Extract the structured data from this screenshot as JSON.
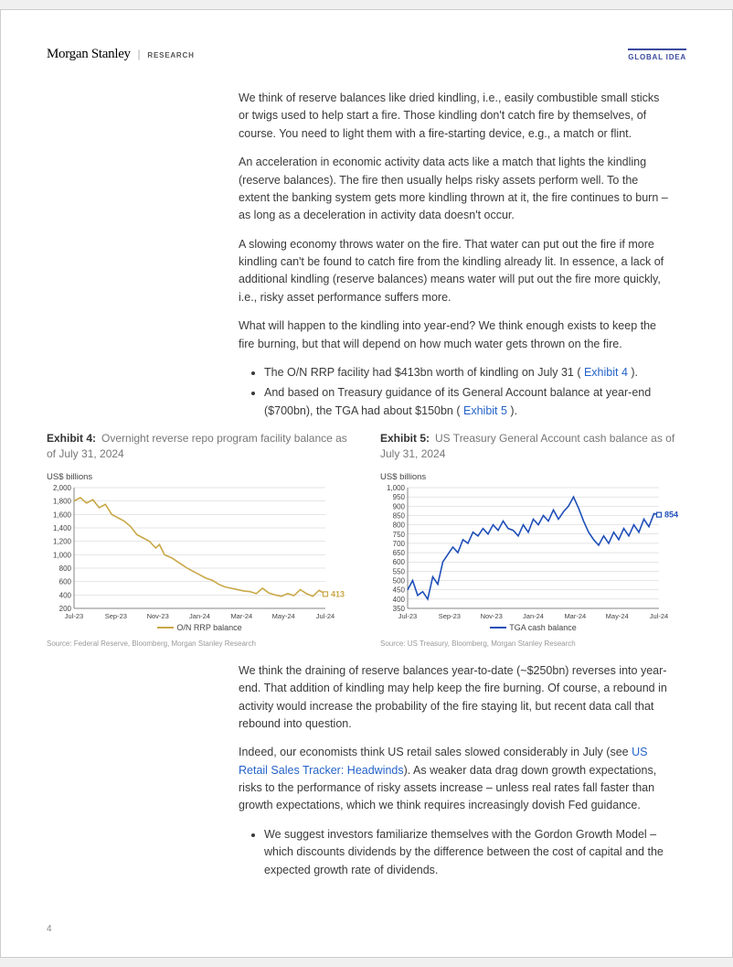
{
  "header": {
    "brand": "Morgan Stanley",
    "sub": "RESEARCH",
    "badge": "GLOBAL IDEA"
  },
  "page_number": "4",
  "paragraphs": {
    "p1": "We think of reserve balances like dried kindling, i.e., easily combustible small sticks or twigs used to help start a fire. Those kindling don't catch fire by themselves, of course. You need to light them with a fire-starting device, e.g., a match or flint.",
    "p2": "An acceleration in economic activity data acts like a match that lights the kindling (reserve balances). The fire then usually helps risky assets perform well. To the extent the banking system gets more kindling thrown at it, the fire continues to burn – as long as a deceleration in activity data doesn't occur.",
    "p3": "A slowing economy throws water on the fire. That water can put out the fire if more kindling can't be found to catch fire from the kindling already lit. In essence, a lack of additional kindling (reserve balances) means water will put out the fire more quickly, i.e., risky asset performance suffers more.",
    "p4": "What will happen to the kindling into year-end? We think enough exists to keep the fire burning, but that will depend on how much water gets thrown on the fire.",
    "li1a": "The O/N RRP facility had $413bn worth of kindling on July 31 ( ",
    "li1_link": "Exhibit 4",
    "li1b": " ).",
    "li2a": "And based on Treasury guidance of its General Account balance at year-end ($700bn), the TGA had about $150bn ( ",
    "li2_link": "Exhibit 5",
    "li2b": " ).",
    "p5": "We think the draining of reserve balances year-to-date (~$250bn) reverses into year-end. That addition of kindling may help keep the fire burning. Of course, a rebound in activity would increase the probability of the fire staying lit, but recent data call that rebound into question.",
    "p6a": "Indeed, our economists think US retail sales slowed considerably in July (see ",
    "p6_link": "US Retail Sales Tracker: Headwinds",
    "p6b": "). As weaker data drag down growth expectations, risks to the performance of risky assets increase – unless real rates fall faster than growth expectations, which we think requires increasingly dovish Fed guidance.",
    "li3": "We suggest investors familiarize themselves with the Gordon Growth Model – which discounts dividends by the difference between the cost of capital and the expected growth rate of dividends."
  },
  "exhibit4": {
    "label": "Exhibit 4:",
    "title": "Overnight reverse repo program facility balance as of July 31, 2024",
    "y_axis_title": "US$ billions",
    "source": "Source: Federal Reserve, Bloomberg, Morgan Stanley Research",
    "legend": "O/N RRP balance",
    "end_label": "413",
    "line_color": "#c9a847",
    "grid_color": "#cccccc",
    "axis_color": "#666666",
    "ylim": [
      200,
      2000
    ],
    "ytick_step": 200,
    "yticks": [
      "200",
      "400",
      "600",
      "800",
      "1,000",
      "1,200",
      "1,400",
      "1,600",
      "1,800",
      "2,000"
    ],
    "xticks": [
      "Jul-23",
      "Sep-23",
      "Nov-23",
      "Jan-24",
      "Mar-24",
      "May-24",
      "Jul-24"
    ],
    "series": [
      [
        0,
        1800
      ],
      [
        5,
        1850
      ],
      [
        10,
        1770
      ],
      [
        15,
        1820
      ],
      [
        20,
        1700
      ],
      [
        25,
        1750
      ],
      [
        30,
        1600
      ],
      [
        35,
        1550
      ],
      [
        40,
        1500
      ],
      [
        45,
        1420
      ],
      [
        50,
        1300
      ],
      [
        55,
        1250
      ],
      [
        60,
        1200
      ],
      [
        65,
        1100
      ],
      [
        68,
        1150
      ],
      [
        72,
        1000
      ],
      [
        78,
        950
      ],
      [
        82,
        900
      ],
      [
        86,
        850
      ],
      [
        90,
        800
      ],
      [
        95,
        750
      ],
      [
        100,
        700
      ],
      [
        105,
        650
      ],
      [
        110,
        620
      ],
      [
        115,
        560
      ],
      [
        120,
        520
      ],
      [
        125,
        500
      ],
      [
        130,
        480
      ],
      [
        135,
        460
      ],
      [
        140,
        450
      ],
      [
        145,
        420
      ],
      [
        150,
        500
      ],
      [
        155,
        430
      ],
      [
        160,
        400
      ],
      [
        165,
        380
      ],
      [
        170,
        420
      ],
      [
        175,
        390
      ],
      [
        180,
        480
      ],
      [
        185,
        420
      ],
      [
        190,
        380
      ],
      [
        195,
        470
      ],
      [
        200,
        413
      ]
    ]
  },
  "exhibit5": {
    "label": "Exhibit 5:",
    "title": "US Treasury General Account cash balance as of July 31, 2024",
    "y_axis_title": "US$ billions",
    "source": "Source: US Treasury, Bloomberg, Morgan Stanley Research",
    "legend": "TGA cash balance",
    "end_label": "854",
    "line_color": "#1f4fb8",
    "grid_color": "#cccccc",
    "axis_color": "#666666",
    "ylim": [
      350,
      1000
    ],
    "ytick_step": 50,
    "yticks": [
      "350",
      "400",
      "450",
      "500",
      "550",
      "600",
      "650",
      "700",
      "750",
      "800",
      "850",
      "900",
      "950",
      "1,000"
    ],
    "xticks": [
      "Jul-23",
      "Sep-23",
      "Nov-23",
      "Jan-24",
      "Mar-24",
      "May-24",
      "Jul-24"
    ],
    "series": [
      [
        0,
        450
      ],
      [
        4,
        500
      ],
      [
        8,
        420
      ],
      [
        12,
        440
      ],
      [
        16,
        400
      ],
      [
        20,
        520
      ],
      [
        24,
        480
      ],
      [
        28,
        600
      ],
      [
        32,
        640
      ],
      [
        36,
        680
      ],
      [
        40,
        650
      ],
      [
        44,
        720
      ],
      [
        48,
        700
      ],
      [
        52,
        760
      ],
      [
        56,
        740
      ],
      [
        60,
        780
      ],
      [
        64,
        750
      ],
      [
        68,
        800
      ],
      [
        72,
        770
      ],
      [
        76,
        820
      ],
      [
        80,
        780
      ],
      [
        84,
        770
      ],
      [
        88,
        740
      ],
      [
        92,
        800
      ],
      [
        96,
        760
      ],
      [
        100,
        830
      ],
      [
        104,
        800
      ],
      [
        108,
        850
      ],
      [
        112,
        820
      ],
      [
        116,
        880
      ],
      [
        120,
        830
      ],
      [
        124,
        870
      ],
      [
        128,
        900
      ],
      [
        132,
        950
      ],
      [
        136,
        890
      ],
      [
        140,
        820
      ],
      [
        144,
        760
      ],
      [
        148,
        720
      ],
      [
        152,
        690
      ],
      [
        156,
        740
      ],
      [
        160,
        700
      ],
      [
        164,
        760
      ],
      [
        168,
        720
      ],
      [
        172,
        780
      ],
      [
        176,
        740
      ],
      [
        180,
        800
      ],
      [
        184,
        760
      ],
      [
        188,
        830
      ],
      [
        192,
        790
      ],
      [
        196,
        860
      ],
      [
        200,
        854
      ]
    ]
  }
}
